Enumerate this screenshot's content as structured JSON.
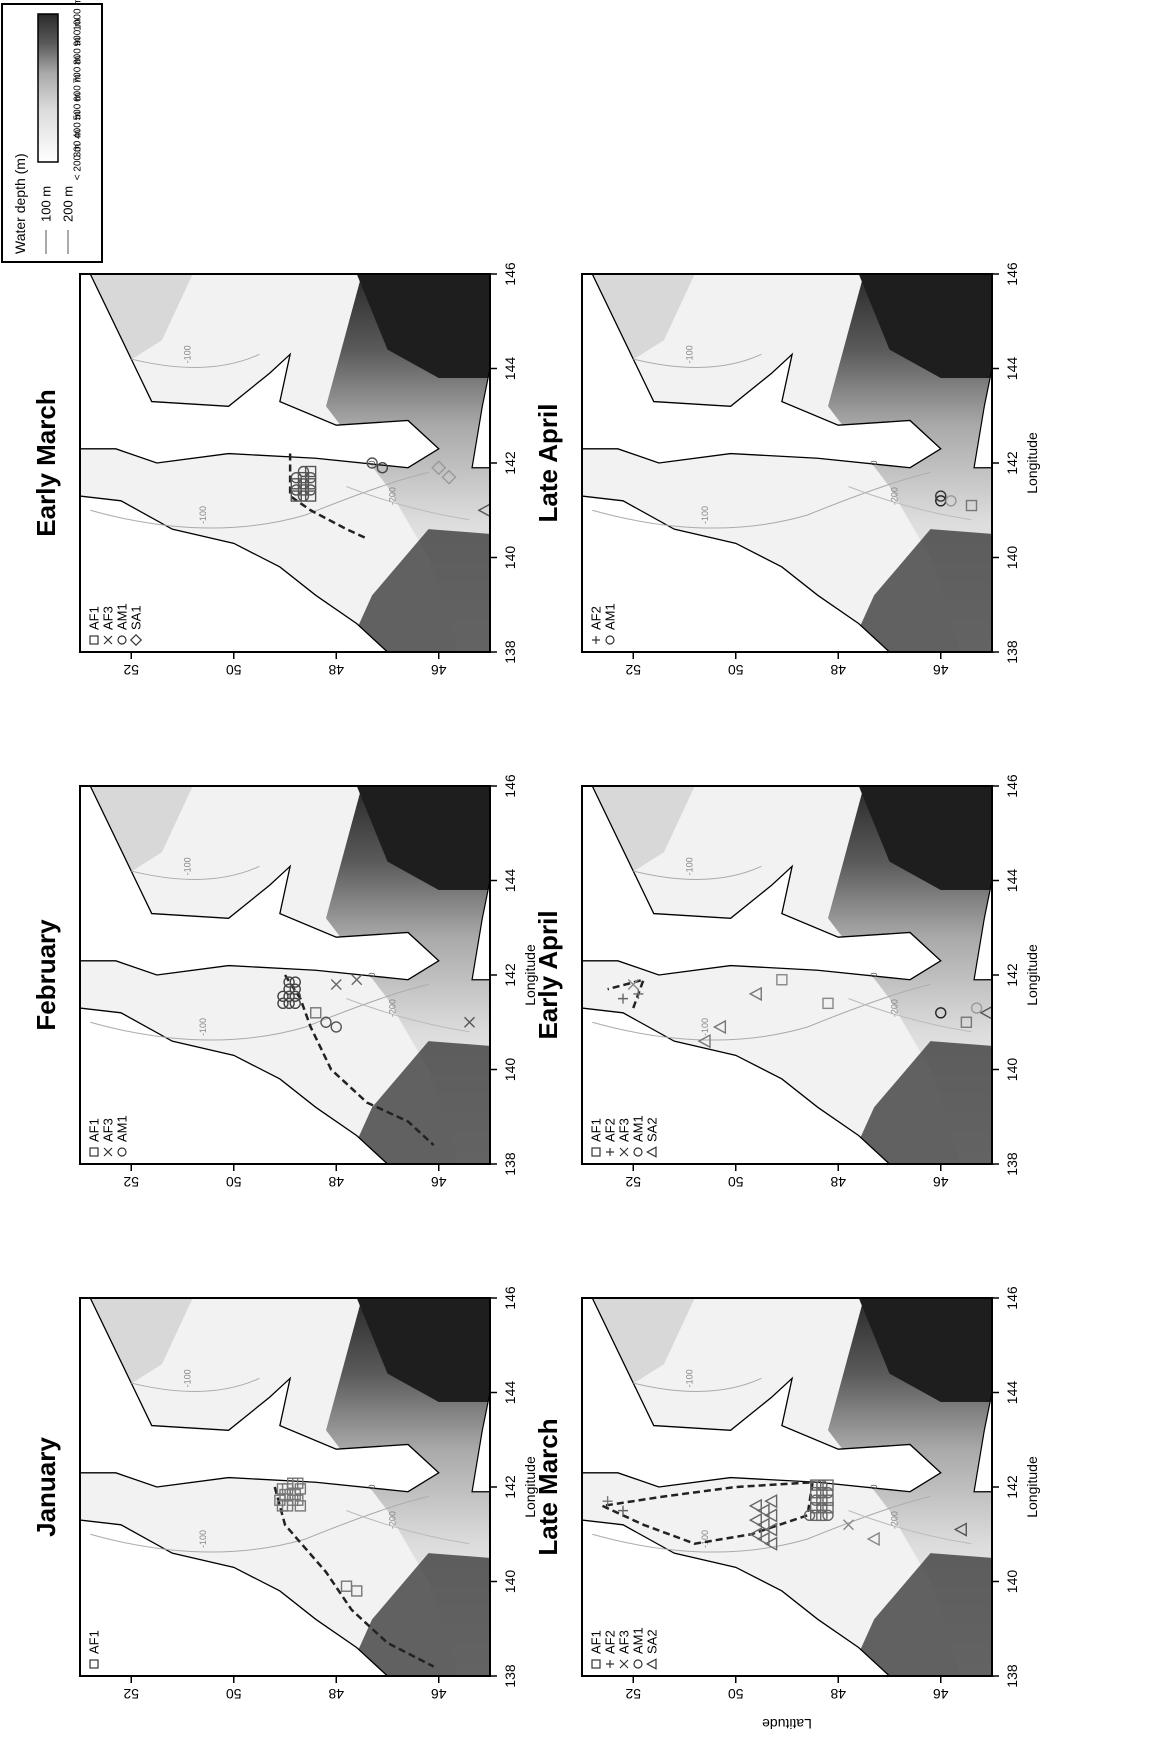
{
  "figure": {
    "axis_labels": {
      "longitude": "Longitude",
      "latitude": "Latitude"
    },
    "lon_ticks": [
      "138",
      "140",
      "142",
      "144",
      "146"
    ],
    "lat_ticks": [
      "46",
      "48",
      "50",
      "52"
    ],
    "legend": {
      "title": "Water depth (m)",
      "contours": [
        "100 m",
        "200 m"
      ],
      "shade_labels": [
        "< 200 m",
        "300 m",
        "400 m",
        "500 m",
        "600 m",
        "700 m",
        "800 m",
        "900 m",
        "1000 m"
      ]
    },
    "contour_labels": [
      "-100",
      "-200",
      "0"
    ]
  },
  "panels": [
    {
      "title": "January",
      "legend": [
        {
          "symbol": "square",
          "label": "AF1"
        }
      ]
    },
    {
      "title": "February",
      "legend": [
        {
          "symbol": "square",
          "label": "AF1"
        },
        {
          "symbol": "cross-x",
          "label": "AF3"
        },
        {
          "symbol": "circle",
          "label": "AM1"
        }
      ]
    },
    {
      "title": "Early March",
      "legend": [
        {
          "symbol": "square",
          "label": "AF1"
        },
        {
          "symbol": "cross-x",
          "label": "AF3"
        },
        {
          "symbol": "circle",
          "label": "AM1"
        },
        {
          "symbol": "diamond",
          "label": "SA1"
        }
      ]
    },
    {
      "title": "Late March",
      "legend": [
        {
          "symbol": "square",
          "label": "AF1"
        },
        {
          "symbol": "plus",
          "label": "AF2"
        },
        {
          "symbol": "cross-x",
          "label": "AF3"
        },
        {
          "symbol": "circle",
          "label": "AM1"
        },
        {
          "symbol": "triangle",
          "label": "SA2"
        }
      ]
    },
    {
      "title": "Early April",
      "legend": [
        {
          "symbol": "square",
          "label": "AF1"
        },
        {
          "symbol": "plus",
          "label": "AF2"
        },
        {
          "symbol": "cross-x",
          "label": "AF3"
        },
        {
          "symbol": "circle",
          "label": "AM1"
        },
        {
          "symbol": "triangle",
          "label": "SA2"
        }
      ]
    },
    {
      "title": "Late April",
      "legend": [
        {
          "symbol": "plus",
          "label": "AF2"
        },
        {
          "symbol": "circle",
          "label": "AM1"
        }
      ]
    }
  ]
}
